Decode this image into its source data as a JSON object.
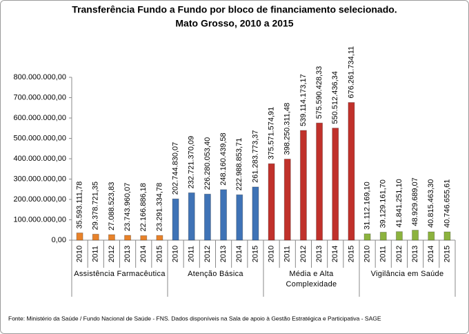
{
  "chart_data": {
    "type": "bar",
    "title": "Transferência Fundo a Fundo por bloco de financiamento selecionado.",
    "subtitle": "Mato Grosso, 2010 a 2015",
    "footnote": "Fonte: Ministério da Saúde / Fundo Nacional de Saúde - FNS. Dados disponíveis na Sala de apoio à Gestão Estratégica e Participativa - SAGE",
    "ylim": [
      0,
      800000000
    ],
    "yticks": [
      {
        "value": 0,
        "label": "0,00"
      },
      {
        "value": 100000000,
        "label": "100.000.000,00"
      },
      {
        "value": 200000000,
        "label": "200.000.000,00"
      },
      {
        "value": 300000000,
        "label": "300.000.000,00"
      },
      {
        "value": 400000000,
        "label": "400.000.000,00"
      },
      {
        "value": 500000000,
        "label": "500.000.000,00"
      },
      {
        "value": 600000000,
        "label": "600.000.000,00"
      },
      {
        "value": 700000000,
        "label": "700.000.000,00"
      },
      {
        "value": 800000000,
        "label": "800.000.000,00"
      }
    ],
    "grid": false,
    "groups": [
      {
        "name": "Assistência Farmacêutica",
        "color": "#e8822a",
        "categories": [
          "2010",
          "2011",
          "2012",
          "2013",
          "2014",
          "2015"
        ],
        "values": [
          35593111.78,
          29378721.35,
          27088523.83,
          23743960.07,
          22166886.18,
          23291334.78
        ],
        "value_labels": [
          "35.593.111,78",
          "29.378.721,35",
          "27.088.523,83",
          "23.743.960,07",
          "22.166.886,18",
          "23.291.334,78"
        ]
      },
      {
        "name": "Atenção Básica",
        "color": "#3f73b6",
        "categories": [
          "2010",
          "2011",
          "2012",
          "2013",
          "2014",
          "2015"
        ],
        "values": [
          202744830.07,
          232721370.09,
          226280053.4,
          248160439.58,
          222988853.71,
          261283773.37
        ],
        "value_labels": [
          "202.744.830,07",
          "232.721.370,09",
          "226.280.053,40",
          "248.160.439,58",
          "222.988.853,71",
          "261.283.773,37"
        ]
      },
      {
        "name": "Média e Alta Complexidade",
        "color": "#c0312b",
        "categories": [
          "2010",
          "2011",
          "2012",
          "2013",
          "2014",
          "2015"
        ],
        "values": [
          375571574.91,
          398250311.48,
          539114173.17,
          575590428.33,
          550512436.34,
          676261734.11
        ],
        "value_labels": [
          "375.571.574,91",
          "398.250.311,48",
          "539.114.173,17",
          "575.590.428,33",
          "550.512.436,34",
          "676.261.734,11"
        ]
      },
      {
        "name": "Vigilância em Saúde",
        "color": "#8cb33e",
        "categories": [
          "2010",
          "2011",
          "2012",
          "2013",
          "2014",
          "2015"
        ],
        "values": [
          31112169.1,
          39129161.7,
          41841251.1,
          48929689.07,
          40815463.3,
          40746655.61
        ],
        "value_labels": [
          "31.112.169,10",
          "39.129.161,70",
          "41.841.251,10",
          "48.929.689,07",
          "40.815.463,30",
          "40.746.655,61"
        ]
      }
    ]
  }
}
